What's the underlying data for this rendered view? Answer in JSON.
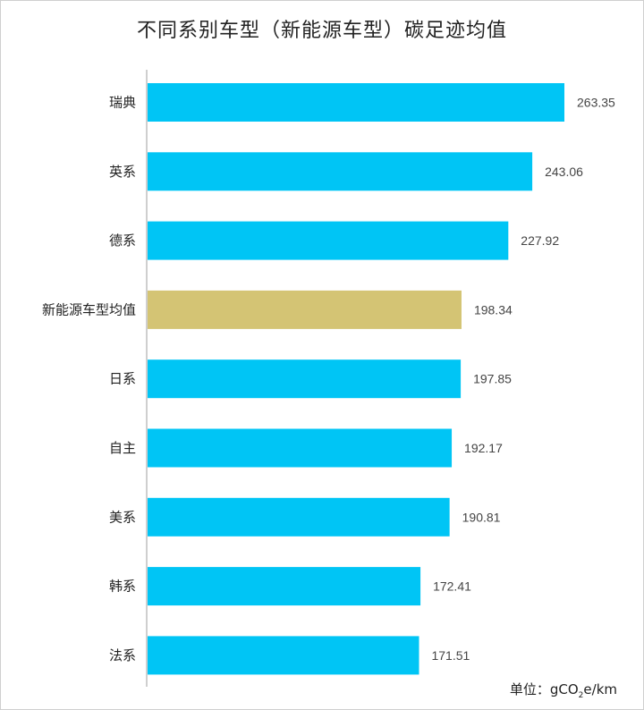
{
  "chart_data": {
    "type": "bar",
    "orientation": "horizontal",
    "title": "不同系别车型（新能源车型）碳足迹均值",
    "categories": [
      "瑞典",
      "英系",
      "德系",
      "新能源车型均值",
      "日系",
      "自主",
      "美系",
      "韩系",
      "法系"
    ],
    "values": [
      263.35,
      243.06,
      227.92,
      198.34,
      197.85,
      192.17,
      190.81,
      172.41,
      171.51
    ],
    "value_labels": [
      "263.35",
      "243.06",
      "227.92",
      "198.34",
      "197.85",
      "192.17",
      "190.81",
      "172.41",
      "171.51"
    ],
    "highlight_category": "新能源车型均值",
    "colors": {
      "bar": "#00C5F5",
      "highlight": "#D4C474",
      "axis": "#BFBFBF"
    },
    "xlim": [
      0,
      280
    ],
    "unit_label": "单位：",
    "unit_value": "gCO",
    "unit_sub": "2",
    "unit_suffix": "e/km"
  }
}
